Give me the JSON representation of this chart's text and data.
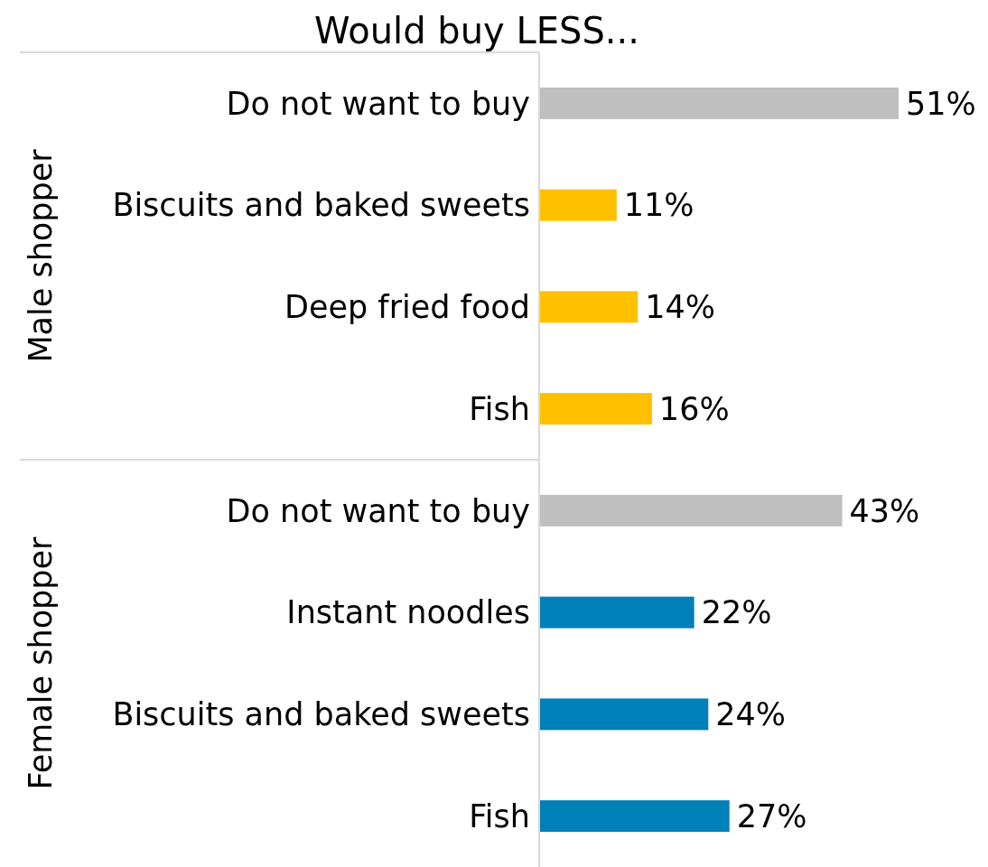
{
  "chart_data": {
    "type": "bar",
    "orientation": "horizontal",
    "title": "Would buy LESS...",
    "categories": [
      "Do not want to buy",
      "Biscuits and baked sweets",
      "Deep fried food",
      "Fish",
      "Do not want to buy",
      "Instant noodles",
      "Biscuits and baked sweets",
      "Fish"
    ],
    "values": [
      51,
      11,
      14,
      16,
      43,
      22,
      24,
      27
    ],
    "colors": [
      "#bfbfbf",
      "#ffc000",
      "#ffc000",
      "#ffc000",
      "#bfbfbf",
      "#0080b8",
      "#0080b8",
      "#0080b8"
    ],
    "value_labels": [
      "51%",
      "11%",
      "14%",
      "16%",
      "43%",
      "22%",
      "24%",
      "27%"
    ],
    "annotations": [
      "Male shopper",
      "Female shopper"
    ]
  }
}
